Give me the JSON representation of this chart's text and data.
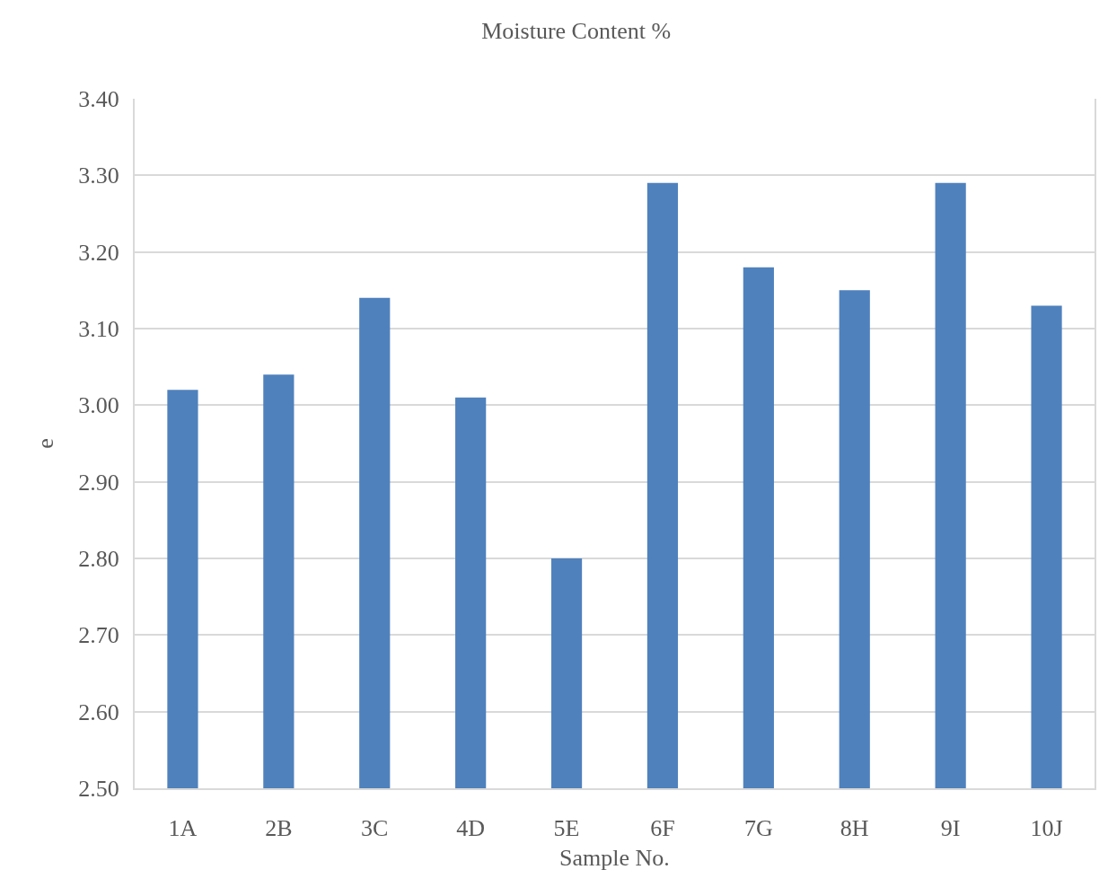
{
  "chart_data": {
    "type": "bar",
    "title": "Moisture Content %",
    "xlabel": "Sample No.",
    "ylabel": "e",
    "categories": [
      "1A",
      "2B",
      "3C",
      "4D",
      "5E",
      "6F",
      "7G",
      "8H",
      "9I",
      "10J"
    ],
    "values": [
      3.02,
      3.04,
      3.14,
      3.01,
      2.8,
      3.29,
      3.18,
      3.15,
      3.29,
      3.13
    ],
    "color": "#4f81bd",
    "ylim": [
      2.5,
      3.4
    ],
    "yticks": [
      {
        "value": 2.5,
        "label": "2.50"
      },
      {
        "value": 2.6,
        "label": "2.60"
      },
      {
        "value": 2.7,
        "label": "2.70"
      },
      {
        "value": 2.8,
        "label": "2.80"
      },
      {
        "value": 2.9,
        "label": "2.90"
      },
      {
        "value": 3.0,
        "label": "3.00"
      },
      {
        "value": 3.1,
        "label": "3.10"
      },
      {
        "value": 3.2,
        "label": "3.20"
      },
      {
        "value": 3.3,
        "label": "3.30"
      },
      {
        "value": 3.4,
        "label": "3.40"
      }
    ],
    "grid": "y"
  }
}
